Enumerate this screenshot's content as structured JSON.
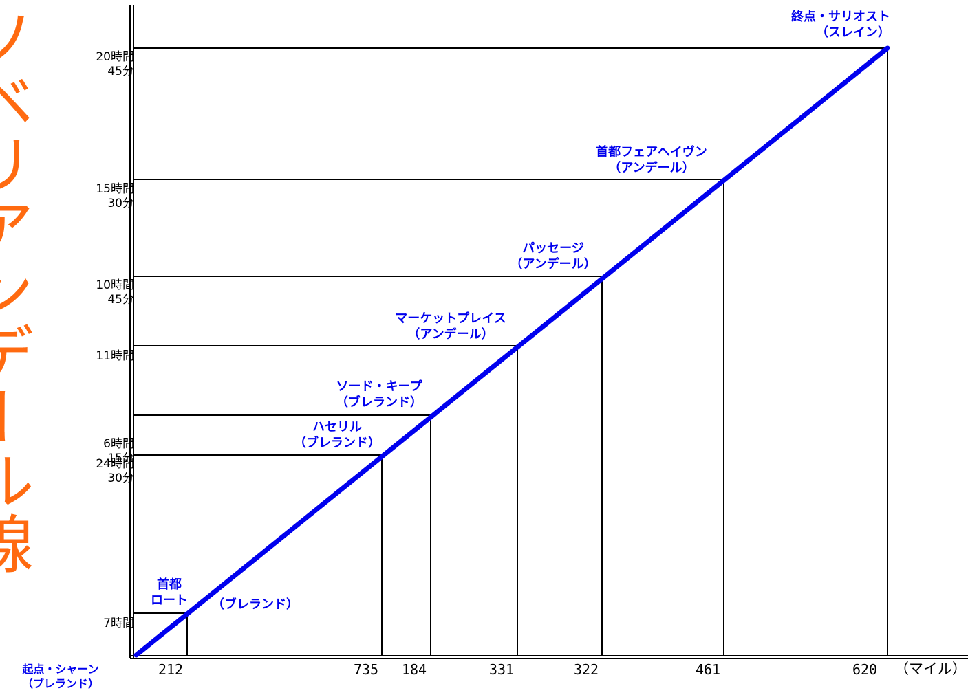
{
  "title": "ソベリアンデール線",
  "x_unit": "（マイル）",
  "origin": "起点・シャーン\n（ブレランド）",
  "accent_colors": {
    "title": "#ff6a10",
    "route": "#0000ee",
    "grid": "#000000"
  },
  "stations": [
    {
      "label": "首都\nロート",
      "distance": "212",
      "time": "7時間",
      "label_b": "（ブレランド）"
    },
    {
      "label": "ハセリル\n（ブレランド）",
      "distance": "735",
      "time": "24時間\n30分"
    },
    {
      "label": "ソード・キープ\n（ブレランド）",
      "distance": "184",
      "time": "6時間\n15分"
    },
    {
      "label": "マーケットプレイス\n（アンデール）",
      "distance": "331",
      "time": "11時間"
    },
    {
      "label": "パッセージ\n（アンデール）",
      "distance": "322",
      "time": "10時間\n45分"
    },
    {
      "label": "首都フェアヘイヴン\n（アンデール）",
      "distance": "461",
      "time": "15時間\n30分"
    },
    {
      "label": "終点・サリオスト\n（スレイン）",
      "distance": "620",
      "time": "20時間\n45分"
    }
  ]
}
